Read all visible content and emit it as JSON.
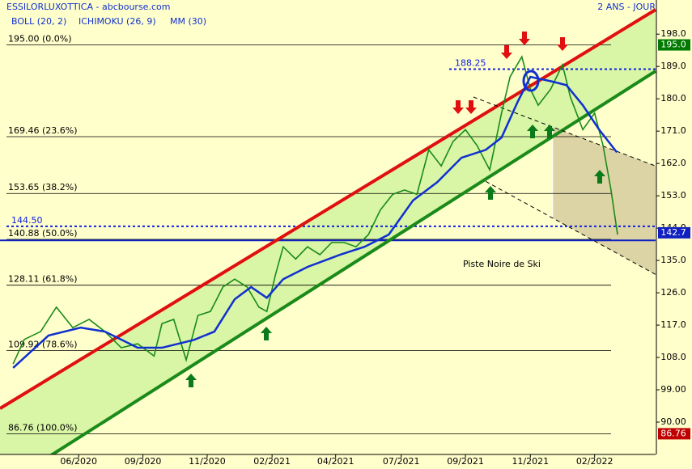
{
  "chart_data": {
    "type": "line",
    "title": "ESSILORLUXOTTICA - abcbourse.com",
    "subtitle": "2 ANS - JOUR",
    "indicators": [
      "BOLL (20, 2)",
      "ICHIMOKU (26, 9)",
      "MM (30)"
    ],
    "annotation": "Piste Noire de Ski",
    "xlim": [
      0,
      100
    ],
    "xticks": [
      {
        "value": 12,
        "label": "06/2020"
      },
      {
        "value": 21.8,
        "label": "09/2020"
      },
      {
        "value": 31.6,
        "label": "11/2020"
      },
      {
        "value": 41.5,
        "label": "02/2021"
      },
      {
        "value": 51.2,
        "label": "04/2021"
      },
      {
        "value": 61.2,
        "label": "07/2021"
      },
      {
        "value": 71,
        "label": "09/2021"
      },
      {
        "value": 80.9,
        "label": "11/2021"
      },
      {
        "value": 90.7,
        "label": "02/2022"
      }
    ],
    "ylim": [
      81,
      207.5
    ],
    "yticks": [
      {
        "value": 90,
        "label": "90.00"
      },
      {
        "value": 99,
        "label": "99.00"
      },
      {
        "value": 108,
        "label": "108.0"
      },
      {
        "value": 117,
        "label": "117.0"
      },
      {
        "value": 126,
        "label": "126.0"
      },
      {
        "value": 135,
        "label": "135.0"
      },
      {
        "value": 144,
        "label": "144.0"
      },
      {
        "value": 153,
        "label": "153.0"
      },
      {
        "value": 162,
        "label": "162.0"
      },
      {
        "value": 171,
        "label": "171.0"
      },
      {
        "value": 180,
        "label": "180.0"
      },
      {
        "value": 189,
        "label": "189.0"
      },
      {
        "value": 198,
        "label": "198.0"
      }
    ],
    "series": [
      {
        "name": "Cours",
        "color": "#1a8a1a",
        "x": [
          2.0,
          3.7,
          6.2,
          8.6,
          11.1,
          13.6,
          16.0,
          18.5,
          21.0,
          23.5,
          24.7,
          26.5,
          28.4,
          30.2,
          32.1,
          34.0,
          35.8,
          37.7,
          39.5,
          40.7,
          42.0,
          43.2,
          45.1,
          46.9,
          48.8,
          50.6,
          52.5,
          54.3,
          56.2,
          58.0,
          59.9,
          61.7,
          63.6,
          65.4,
          67.3,
          69.1,
          71.0,
          72.8,
          74.7,
          76.5,
          77.8,
          79.6,
          80.9,
          82.1,
          84.0,
          85.8,
          87.0,
          88.9,
          90.7,
          92.0,
          93.2,
          94.2
        ],
        "values": [
          106.2,
          113,
          115.2,
          122,
          116.3,
          118.6,
          115.2,
          110.7,
          111.8,
          108.4,
          117.4,
          118.6,
          107.3,
          119.7,
          120.8,
          127.6,
          129.8,
          127.6,
          122,
          120.8,
          130.9,
          138.8,
          135.4,
          138.8,
          136.6,
          140,
          140,
          138.8,
          142.2,
          149,
          153.4,
          154.6,
          153.4,
          165.8,
          161.3,
          168.1,
          171.4,
          166.9,
          160.2,
          176,
          186.1,
          191.7,
          182.7,
          178.2,
          182.7,
          189.5,
          180.5,
          171.4,
          176,
          166.9,
          154.6,
          142.2
        ]
      },
      {
        "name": "MM (30)",
        "color": "#1030d0",
        "x": [
          2,
          7.4,
          12.3,
          16,
          21,
          24.7,
          29.6,
          32.7,
          35.8,
          38.3,
          40.7,
          43.2,
          46.9,
          51.9,
          55.6,
          59.3,
          63,
          66.7,
          70.4,
          74.1,
          76.5,
          79,
          80.9,
          84,
          86.4,
          88.9,
          91.4,
          94.1
        ],
        "values": [
          105.1,
          114.1,
          116.3,
          115.2,
          110.7,
          110.7,
          112.9,
          115.2,
          124.2,
          127.6,
          124.6,
          129.8,
          133.2,
          136.6,
          138.8,
          142.2,
          151.7,
          156.8,
          163.6,
          165.8,
          169.2,
          179.3,
          186.1,
          184.9,
          183.8,
          178.2,
          171.4,
          165.1
        ]
      }
    ],
    "trendlines": [
      {
        "color": "#e01010",
        "x": [
          0,
          100
        ],
        "values": [
          93.8,
          204.8
        ]
      },
      {
        "color": "#1a8a1a",
        "x": [
          7.4,
          100
        ],
        "values": [
          80.3,
          187.7
        ]
      },
      {
        "color": "#000000",
        "x": [
          72.2,
          100
        ],
        "values": [
          180.5,
          161.3
        ]
      },
      {
        "color": "#000000",
        "x": [
          74.1,
          100
        ],
        "values": [
          157,
          131.1
        ]
      }
    ],
    "fib_levels": [
      {
        "value": 195,
        "label": "195.00 (0.0%)"
      },
      {
        "value": 169.46,
        "label": "169.46 (23.6%)"
      },
      {
        "value": 153.65,
        "label": "153.65 (38.2%)"
      },
      {
        "value": 140.88,
        "label": "140.88 (50.0%)"
      },
      {
        "value": 128.11,
        "label": "128.11 (61.8%)"
      },
      {
        "value": 109.92,
        "label": "109.92 (78.6%)"
      },
      {
        "value": 86.76,
        "label": "86.76 (100.0%)"
      }
    ],
    "dotted_levels": [
      {
        "value": 188.25,
        "label": "188.25"
      },
      {
        "value": 144.5,
        "label": "144.50"
      }
    ],
    "support_line": 140.6,
    "price_tags": [
      {
        "value": 195,
        "label": "195.0",
        "color": "#007a00"
      },
      {
        "value": 142.7,
        "label": "142.7",
        "color": "#1020c0"
      },
      {
        "value": 86.76,
        "label": "86.76",
        "color": "#c00000"
      }
    ]
  }
}
